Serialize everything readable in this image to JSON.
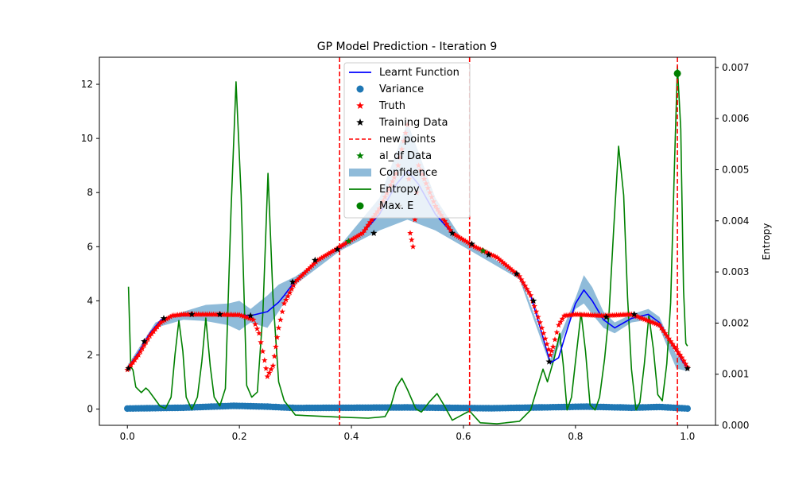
{
  "chart_data": {
    "type": "line",
    "title": "GP Model Prediction - Iteration 9",
    "xlabel": "",
    "ylabel": "",
    "y2label": "Entropy",
    "xlim": [
      -0.05,
      1.05
    ],
    "ylim": [
      -0.6,
      13.0
    ],
    "y2lim": [
      0.0,
      0.0072
    ],
    "x_ticks": [
      "0.0",
      "0.2",
      "0.4",
      "0.6",
      "0.8",
      "1.0"
    ],
    "y_ticks": [
      "0",
      "2",
      "4",
      "6",
      "8",
      "10",
      "12"
    ],
    "y2_ticks": [
      "0.000",
      "0.001",
      "0.002",
      "0.003",
      "0.004",
      "0.005",
      "0.006",
      "0.007"
    ],
    "legend": {
      "placement": "top-center",
      "entries": [
        {
          "label": "Learnt Function",
          "kind": "line",
          "color": "#0000ff"
        },
        {
          "label": "Variance",
          "kind": "dot",
          "color": "#1f77b4"
        },
        {
          "label": "Truth",
          "kind": "star",
          "color": "#ff0000"
        },
        {
          "label": "Training Data",
          "kind": "star",
          "color": "#000000"
        },
        {
          "label": "new points",
          "kind": "dashed",
          "color": "#ff0000"
        },
        {
          "label": "al_df Data",
          "kind": "star",
          "color": "#008000"
        },
        {
          "label": "Confidence",
          "kind": "patch",
          "color": "#1f77b4"
        },
        {
          "label": "Entropy",
          "kind": "line",
          "color": "#008000"
        },
        {
          "label": "Max. E",
          "kind": "dot",
          "color": "#008000"
        }
      ]
    },
    "new_points_x": [
      0.379,
      0.611,
      0.982
    ],
    "max_entropy": {
      "x": 0.982,
      "y": 12.4
    },
    "truth_xy": [
      [
        0.0,
        1.45
      ],
      [
        0.02,
        2.0
      ],
      [
        0.04,
        2.7
      ],
      [
        0.06,
        3.2
      ],
      [
        0.08,
        3.45
      ],
      [
        0.1,
        3.5
      ],
      [
        0.15,
        3.5
      ],
      [
        0.2,
        3.48
      ],
      [
        0.225,
        3.3
      ],
      [
        0.235,
        2.8
      ],
      [
        0.245,
        1.8
      ],
      [
        0.25,
        1.2
      ],
      [
        0.26,
        1.6
      ],
      [
        0.265,
        2.3
      ],
      [
        0.27,
        3.0
      ],
      [
        0.28,
        3.9
      ],
      [
        0.3,
        4.7
      ],
      [
        0.34,
        5.5
      ],
      [
        0.38,
        6.0
      ],
      [
        0.42,
        6.5
      ],
      [
        0.45,
        7.4
      ],
      [
        0.48,
        8.7
      ],
      [
        0.5,
        10.5
      ],
      [
        0.505,
        6.5
      ],
      [
        0.51,
        6.0
      ],
      [
        0.52,
        9.0
      ],
      [
        0.55,
        7.5
      ],
      [
        0.58,
        6.5
      ],
      [
        0.62,
        6.0
      ],
      [
        0.66,
        5.6
      ],
      [
        0.7,
        4.9
      ],
      [
        0.72,
        4.2
      ],
      [
        0.74,
        3.0
      ],
      [
        0.755,
        2.0
      ],
      [
        0.76,
        2.3
      ],
      [
        0.77,
        3.1
      ],
      [
        0.78,
        3.45
      ],
      [
        0.8,
        3.5
      ],
      [
        0.85,
        3.45
      ],
      [
        0.9,
        3.5
      ],
      [
        0.95,
        3.1
      ],
      [
        0.97,
        2.5
      ],
      [
        0.99,
        1.9
      ],
      [
        1.0,
        1.55
      ]
    ],
    "training_xy": [
      [
        0.002,
        1.5
      ],
      [
        0.03,
        2.5
      ],
      [
        0.065,
        3.35
      ],
      [
        0.115,
        3.5
      ],
      [
        0.165,
        3.5
      ],
      [
        0.22,
        3.45
      ],
      [
        0.295,
        4.7
      ],
      [
        0.335,
        5.5
      ],
      [
        0.375,
        5.9
      ],
      [
        0.44,
        6.5
      ],
      [
        0.485,
        7.5
      ],
      [
        0.58,
        6.5
      ],
      [
        0.615,
        6.1
      ],
      [
        0.645,
        5.7
      ],
      [
        0.695,
        5.0
      ],
      [
        0.725,
        4.0
      ],
      [
        0.753,
        1.75
      ],
      [
        0.855,
        3.4
      ],
      [
        0.905,
        3.5
      ],
      [
        1.0,
        1.5
      ]
    ],
    "al_df_xy": [
      [
        0.395,
        6.2
      ],
      [
        0.635,
        5.85
      ]
    ],
    "learnt_xy": [
      [
        0.0,
        1.5
      ],
      [
        0.02,
        2.1
      ],
      [
        0.04,
        2.8
      ],
      [
        0.06,
        3.3
      ],
      [
        0.08,
        3.45
      ],
      [
        0.1,
        3.45
      ],
      [
        0.14,
        3.5
      ],
      [
        0.18,
        3.5
      ],
      [
        0.22,
        3.45
      ],
      [
        0.25,
        3.6
      ],
      [
        0.27,
        3.95
      ],
      [
        0.28,
        4.2
      ],
      [
        0.3,
        4.75
      ],
      [
        0.34,
        5.5
      ],
      [
        0.38,
        5.95
      ],
      [
        0.42,
        6.5
      ],
      [
        0.45,
        7.2
      ],
      [
        0.48,
        8.3
      ],
      [
        0.5,
        8.8
      ],
      [
        0.52,
        8.3
      ],
      [
        0.55,
        7.2
      ],
      [
        0.58,
        6.5
      ],
      [
        0.62,
        6.0
      ],
      [
        0.66,
        5.6
      ],
      [
        0.7,
        4.9
      ],
      [
        0.72,
        4.2
      ],
      [
        0.74,
        2.8
      ],
      [
        0.755,
        1.7
      ],
      [
        0.77,
        1.9
      ],
      [
        0.78,
        2.6
      ],
      [
        0.8,
        3.9
      ],
      [
        0.815,
        4.4
      ],
      [
        0.83,
        4.0
      ],
      [
        0.85,
        3.3
      ],
      [
        0.87,
        3.0
      ],
      [
        0.9,
        3.35
      ],
      [
        0.93,
        3.5
      ],
      [
        0.95,
        3.2
      ],
      [
        0.97,
        2.5
      ],
      [
        0.99,
        1.8
      ],
      [
        1.0,
        1.5
      ]
    ],
    "confidence_band": [
      [
        0.0,
        1.4,
        1.6
      ],
      [
        0.05,
        3.0,
        3.2
      ],
      [
        0.1,
        3.3,
        3.6
      ],
      [
        0.14,
        3.25,
        3.85
      ],
      [
        0.18,
        3.1,
        3.9
      ],
      [
        0.2,
        2.9,
        4.0
      ],
      [
        0.22,
        3.2,
        3.7
      ],
      [
        0.25,
        3.0,
        4.2
      ],
      [
        0.27,
        3.6,
        4.6
      ],
      [
        0.3,
        4.6,
        4.9
      ],
      [
        0.38,
        5.85,
        6.05
      ],
      [
        0.45,
        6.6,
        7.8
      ],
      [
        0.5,
        7.0,
        10.6
      ],
      [
        0.55,
        6.6,
        7.8
      ],
      [
        0.6,
        6.0,
        6.2
      ],
      [
        0.7,
        4.8,
        5.0
      ],
      [
        0.755,
        1.6,
        1.85
      ],
      [
        0.8,
        3.7,
        4.1
      ],
      [
        0.815,
        3.9,
        4.95
      ],
      [
        0.83,
        3.5,
        4.5
      ],
      [
        0.85,
        3.0,
        3.6
      ],
      [
        0.87,
        2.8,
        3.2
      ],
      [
        0.9,
        3.2,
        3.5
      ],
      [
        0.93,
        3.3,
        3.7
      ],
      [
        0.95,
        3.0,
        3.4
      ],
      [
        0.98,
        1.5,
        2.0
      ],
      [
        1.0,
        1.4,
        1.6
      ]
    ],
    "variance_bumps": [
      [
        0.0,
        0.02
      ],
      [
        0.1,
        0.05
      ],
      [
        0.19,
        0.12
      ],
      [
        0.25,
        0.09
      ],
      [
        0.3,
        0.04
      ],
      [
        0.5,
        0.06
      ],
      [
        0.65,
        0.03
      ],
      [
        0.82,
        0.09
      ],
      [
        0.9,
        0.05
      ],
      [
        0.95,
        0.08
      ],
      [
        1.0,
        0.02
      ]
    ],
    "entropy_xy": [
      [
        0.002,
        0.00271
      ],
      [
        0.006,
        0.00115
      ],
      [
        0.01,
        0.00108
      ],
      [
        0.015,
        0.00075
      ],
      [
        0.025,
        0.00064
      ],
      [
        0.033,
        0.00073
      ],
      [
        0.038,
        0.00068
      ],
      [
        0.048,
        0.00053
      ],
      [
        0.058,
        0.00038
      ],
      [
        0.068,
        0.00033
      ],
      [
        0.078,
        0.00055
      ],
      [
        0.085,
        0.00138
      ],
      [
        0.092,
        0.00205
      ],
      [
        0.099,
        0.00145
      ],
      [
        0.105,
        0.00055
      ],
      [
        0.115,
        0.00031
      ],
      [
        0.125,
        0.00055
      ],
      [
        0.133,
        0.00125
      ],
      [
        0.14,
        0.0021
      ],
      [
        0.148,
        0.00115
      ],
      [
        0.155,
        0.00055
      ],
      [
        0.165,
        0.00038
      ],
      [
        0.175,
        0.00072
      ],
      [
        0.185,
        0.0042
      ],
      [
        0.194,
        0.00672
      ],
      [
        0.203,
        0.0045
      ],
      [
        0.213,
        0.00078
      ],
      [
        0.222,
        0.00055
      ],
      [
        0.232,
        0.00065
      ],
      [
        0.242,
        0.0022
      ],
      [
        0.251,
        0.00493
      ],
      [
        0.26,
        0.0025
      ],
      [
        0.27,
        0.00085
      ],
      [
        0.28,
        0.00048
      ],
      [
        0.3,
        0.0002
      ],
      [
        0.34,
        0.00018
      ],
      [
        0.379,
        0.00016
      ],
      [
        0.43,
        0.00014
      ],
      [
        0.46,
        0.00017
      ],
      [
        0.47,
        0.00037
      ],
      [
        0.48,
        0.00075
      ],
      [
        0.49,
        0.00092
      ],
      [
        0.5,
        0.0007
      ],
      [
        0.515,
        0.00032
      ],
      [
        0.525,
        0.00026
      ],
      [
        0.54,
        0.00047
      ],
      [
        0.553,
        0.00062
      ],
      [
        0.565,
        0.0004
      ],
      [
        0.58,
        0.0001
      ],
      [
        0.6,
        0.00022
      ],
      [
        0.611,
        0.00028
      ],
      [
        0.63,
        5e-05
      ],
      [
        0.66,
        3e-05
      ],
      [
        0.7,
        8e-05
      ],
      [
        0.72,
        0.0003
      ],
      [
        0.735,
        0.00085
      ],
      [
        0.742,
        0.0011
      ],
      [
        0.75,
        0.00085
      ],
      [
        0.763,
        0.00135
      ],
      [
        0.772,
        0.0018
      ],
      [
        0.778,
        0.0012
      ],
      [
        0.785,
        0.0003
      ],
      [
        0.793,
        0.00055
      ],
      [
        0.8,
        0.00125
      ],
      [
        0.81,
        0.0022
      ],
      [
        0.818,
        0.00145
      ],
      [
        0.826,
        0.0004
      ],
      [
        0.835,
        0.0003
      ],
      [
        0.843,
        0.00055
      ],
      [
        0.852,
        0.0013
      ],
      [
        0.86,
        0.0022
      ],
      [
        0.868,
        0.0038
      ],
      [
        0.877,
        0.00546
      ],
      [
        0.886,
        0.0045
      ],
      [
        0.893,
        0.0025
      ],
      [
        0.9,
        0.0011
      ],
      [
        0.908,
        0.0003
      ],
      [
        0.915,
        0.00045
      ],
      [
        0.923,
        0.0012
      ],
      [
        0.931,
        0.00215
      ],
      [
        0.939,
        0.0015
      ],
      [
        0.947,
        0.0006
      ],
      [
        0.955,
        0.00048
      ],
      [
        0.963,
        0.0012
      ],
      [
        0.97,
        0.0024
      ],
      [
        0.977,
        0.0052
      ],
      [
        0.982,
        0.00702
      ],
      [
        0.988,
        0.0058
      ],
      [
        0.993,
        0.00265
      ],
      [
        0.997,
        0.0016
      ],
      [
        1.0,
        0.00155
      ]
    ]
  }
}
